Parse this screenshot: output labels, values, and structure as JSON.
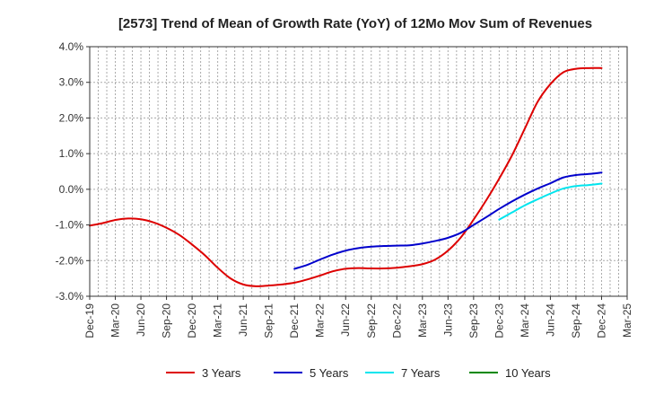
{
  "chart_data": {
    "type": "line",
    "title": "[2573]  Trend of Mean of Growth Rate (YoY) of 12Mo Mov Sum of Revenues",
    "xlabel": "",
    "ylabel": "",
    "ylim": [
      -3.0,
      4.0
    ],
    "y_ticks": [
      -3.0,
      -2.0,
      -1.0,
      0.0,
      1.0,
      2.0,
      3.0,
      4.0
    ],
    "y_tick_labels": [
      "-3.0%",
      "-2.0%",
      "-1.0%",
      "0.0%",
      "1.0%",
      "2.0%",
      "3.0%",
      "4.0%"
    ],
    "x_tick_labels": [
      "Dec-19",
      "Mar-20",
      "Jun-20",
      "Sep-20",
      "Dec-20",
      "Mar-21",
      "Jun-21",
      "Sep-21",
      "Dec-21",
      "Mar-22",
      "Jun-22",
      "Sep-22",
      "Dec-22",
      "Mar-23",
      "Jun-23",
      "Sep-23",
      "Dec-23",
      "Mar-24",
      "Jun-24",
      "Sep-24",
      "Dec-24",
      "Mar-25"
    ],
    "x_unit": "quarters since Dec-19",
    "xlim": [
      0,
      21
    ],
    "grid": "dotted",
    "legend_position": "bottom",
    "series": [
      {
        "name": "3 Years",
        "color": "#dd0000",
        "x": [
          0,
          0.5,
          1,
          1.5,
          2,
          2.5,
          3,
          3.5,
          4,
          4.5,
          5,
          5.5,
          6,
          6.5,
          7,
          7.5,
          8,
          8.5,
          9,
          9.5,
          10,
          10.5,
          11,
          11.5,
          12,
          12.5,
          13,
          13.5,
          14,
          14.5,
          15,
          15.5,
          16,
          16.5,
          17,
          17.5,
          18,
          18.5,
          19,
          19.5,
          20
        ],
        "values": [
          -1.02,
          -0.95,
          -0.86,
          -0.82,
          -0.84,
          -0.93,
          -1.08,
          -1.28,
          -1.55,
          -1.85,
          -2.2,
          -2.5,
          -2.67,
          -2.72,
          -2.7,
          -2.67,
          -2.62,
          -2.53,
          -2.42,
          -2.3,
          -2.23,
          -2.21,
          -2.22,
          -2.22,
          -2.2,
          -2.16,
          -2.1,
          -1.97,
          -1.72,
          -1.35,
          -0.85,
          -0.3,
          0.3,
          0.95,
          1.7,
          2.45,
          2.95,
          3.28,
          3.38,
          3.4,
          3.4
        ]
      },
      {
        "name": "5 Years",
        "color": "#0000cc",
        "x": [
          8,
          8.5,
          9,
          9.5,
          10,
          10.5,
          11,
          11.5,
          12,
          12.5,
          13,
          13.5,
          14,
          14.5,
          15,
          15.5,
          16,
          16.5,
          17,
          17.5,
          18,
          18.5,
          19,
          19.5,
          20
        ],
        "values": [
          -2.23,
          -2.12,
          -1.97,
          -1.83,
          -1.72,
          -1.65,
          -1.61,
          -1.59,
          -1.58,
          -1.57,
          -1.52,
          -1.45,
          -1.36,
          -1.22,
          -1.0,
          -0.78,
          -0.55,
          -0.34,
          -0.15,
          0.02,
          0.17,
          0.33,
          0.4,
          0.43,
          0.47
        ]
      },
      {
        "name": "7 Years",
        "color": "#00e5ee",
        "x": [
          16,
          16.5,
          17,
          17.5,
          18,
          18.5,
          19,
          19.5,
          20
        ],
        "values": [
          -0.85,
          -0.65,
          -0.45,
          -0.28,
          -0.12,
          0.02,
          0.09,
          0.12,
          0.16
        ]
      },
      {
        "name": "10 Years",
        "color": "#008800",
        "x": [],
        "values": []
      }
    ]
  }
}
